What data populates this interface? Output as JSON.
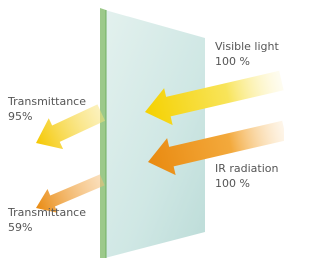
{
  "labels": {
    "visible_light": {
      "name": "Visible light",
      "value": "100 %"
    },
    "transmittance_visible": {
      "name": "Transmittance",
      "value": "95%"
    },
    "ir_radiation": {
      "name": "IR radiation",
      "value": "100 %"
    },
    "transmittance_ir": {
      "name": "Transmittance",
      "value": "59%"
    }
  }
}
